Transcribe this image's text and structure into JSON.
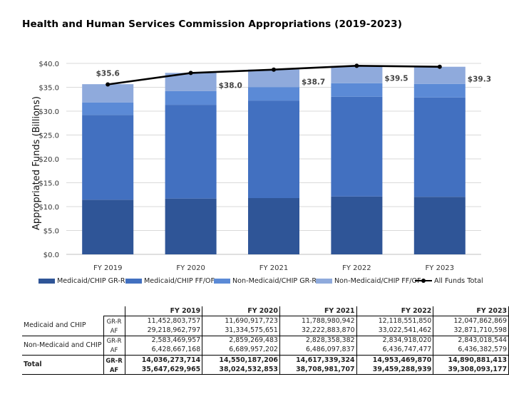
{
  "title": "Health and Human Services Commission Appropriations (2019-2023)",
  "chart_data": {
    "type": "bar",
    "stacked": true,
    "categories": [
      "FY 2019",
      "FY 2020",
      "FY 2021",
      "FY 2022",
      "FY 2023"
    ],
    "series": [
      {
        "name": "Medicaid/CHIP GR-R",
        "values": [
          11.45,
          11.69,
          11.79,
          12.12,
          12.05
        ],
        "color": "#2f5597"
      },
      {
        "name": "Medicaid/CHIP FF/OF",
        "values": [
          17.77,
          19.64,
          20.43,
          20.9,
          20.82
        ],
        "color": "#4270c0"
      },
      {
        "name": "Non-Medicaid/CHIP GR-R",
        "values": [
          2.58,
          2.86,
          2.83,
          2.83,
          2.84
        ],
        "color": "#5b8ad6"
      },
      {
        "name": "Non-Medicaid/CHIP FF/OF",
        "values": [
          3.85,
          3.83,
          3.66,
          3.6,
          3.59
        ],
        "color": "#8faadc"
      }
    ],
    "line": {
      "name": "All Funds Total",
      "values": [
        35.6,
        38.0,
        38.7,
        39.5,
        39.3
      ],
      "labels": [
        "$35.6",
        "$38.0",
        "$38.7",
        "$39.5",
        "$39.3"
      ],
      "color": "#000000"
    },
    "ylabel": "Appropriated Funds (Billions)",
    "xlabel": "",
    "ylim": [
      0,
      40
    ],
    "yticks": [
      0,
      5,
      10,
      15,
      20,
      25,
      30,
      35,
      40
    ],
    "ytick_labels": [
      "$0.0",
      "$5.0",
      "$10.0",
      "$15.0",
      "$20.0",
      "$25.0",
      "$30.0",
      "$35.0",
      "$40.0"
    ],
    "grid": true,
    "legend_position": "bottom"
  },
  "table": {
    "headers": [
      "FY 2019",
      "FY 2020",
      "FY 2021",
      "FY 2022",
      "FY 2023"
    ],
    "groups": [
      {
        "name": "Medicaid and CHIP",
        "rows": [
          {
            "type": "GR-R",
            "values": [
              "11,452,803,757",
              "11,690,917,723",
              "11,788,980,942",
              "12,118,551,850",
              "12,047,862,869"
            ]
          },
          {
            "type": "AF",
            "values": [
              "29,218,962,797",
              "31,334,575,651",
              "32,222,883,870",
              "33,022,541,462",
              "32,871,710,598"
            ]
          }
        ]
      },
      {
        "name": "Non-Medicaid and CHIP",
        "rows": [
          {
            "type": "GR-R",
            "values": [
              "2,583,469,957",
              "2,859,269,483",
              "2,828,358,382",
              "2,834,918,020",
              "2,843,018,544"
            ]
          },
          {
            "type": "AF",
            "values": [
              "6,428,667,168",
              "6,689,957,202",
              "6,486,097,837",
              "6,436,747,477",
              "6,436,382,579"
            ]
          }
        ]
      },
      {
        "name": "Total",
        "bold": true,
        "rows": [
          {
            "type": "GR-R",
            "values": [
              "14,036,273,714",
              "14,550,187,206",
              "14,617,339,324",
              "14,953,469,870",
              "14,890,881,413"
            ]
          },
          {
            "type": "AF",
            "values": [
              "35,647,629,965",
              "38,024,532,853",
              "38,708,981,707",
              "39,459,288,939",
              "39,308,093,177"
            ]
          }
        ]
      }
    ]
  }
}
